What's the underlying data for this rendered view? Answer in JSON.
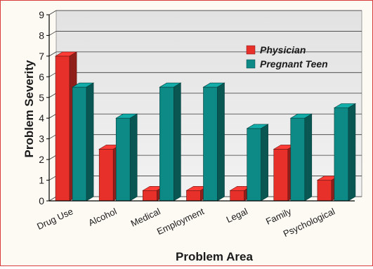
{
  "chart_data": {
    "type": "bar",
    "title": "",
    "xlabel": "Problem Area",
    "ylabel": "Problem Severity",
    "ylim": [
      0,
      9
    ],
    "yticks": [
      0,
      1,
      2,
      3,
      4,
      5,
      6,
      7,
      8,
      9
    ],
    "grid": true,
    "legend_position": "top-right",
    "categories": [
      "Drug Use",
      "Alcohol",
      "Medical",
      "Employment",
      "Legal",
      "Family",
      "Psychological"
    ],
    "series": [
      {
        "name": "Physician",
        "color": "#e8302a",
        "values": [
          7,
          2.5,
          0.5,
          0.5,
          0.5,
          2.5,
          1
        ]
      },
      {
        "name": "Pregnant Teen",
        "color": "#0e8a86",
        "values": [
          5.5,
          4,
          5.5,
          5.5,
          3.5,
          4,
          4.5
        ]
      }
    ]
  }
}
